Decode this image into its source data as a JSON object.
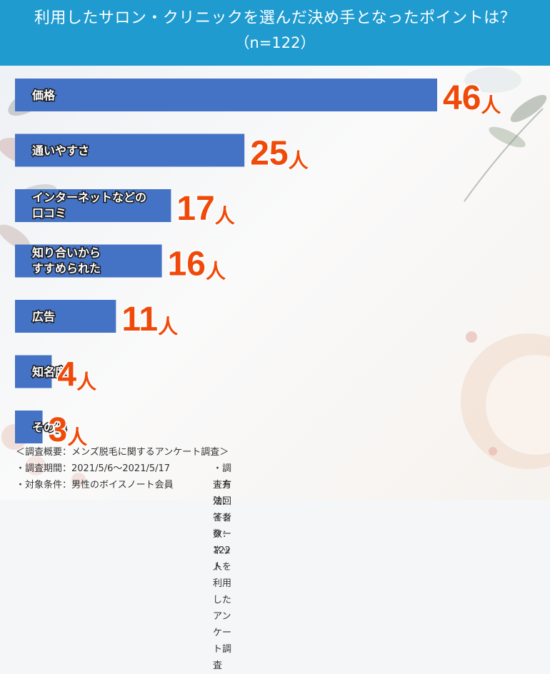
{
  "header": {
    "title": "利用したサロン・クリニックを選んだ決め手となったポイントは？",
    "subtitle": "（n=122）"
  },
  "chart_data": {
    "type": "bar",
    "orientation": "horizontal",
    "categories": [
      "価格",
      "通いやすさ",
      "インターネットなどの口コミ",
      "知り合いからすすめられた",
      "広告",
      "知名度",
      "その他"
    ],
    "category_lines": [
      [
        "価格"
      ],
      [
        "通いやすさ"
      ],
      [
        "インターネットなどの",
        "口コミ"
      ],
      [
        "知り合いから",
        "すすめられた"
      ],
      [
        "広告"
      ],
      [
        "知名度"
      ],
      [
        "その他"
      ]
    ],
    "values": [
      46,
      25,
      17,
      16,
      11,
      4,
      3
    ],
    "unit": "人",
    "bar_color": "#4472c4",
    "value_color": "#f04a0a",
    "legend": "none",
    "grid": false
  },
  "notes": {
    "heading": "＜調査概要：メンズ脱毛に関するアンケート調査＞",
    "period": "・調査期間：2021/5/6〜2021/5/17",
    "method": "・調査方法：インターネットを利用したアンケート調査",
    "target": "・対象条件：男性のボイスノート会員",
    "respondents": "・有効回答者数：122人"
  }
}
